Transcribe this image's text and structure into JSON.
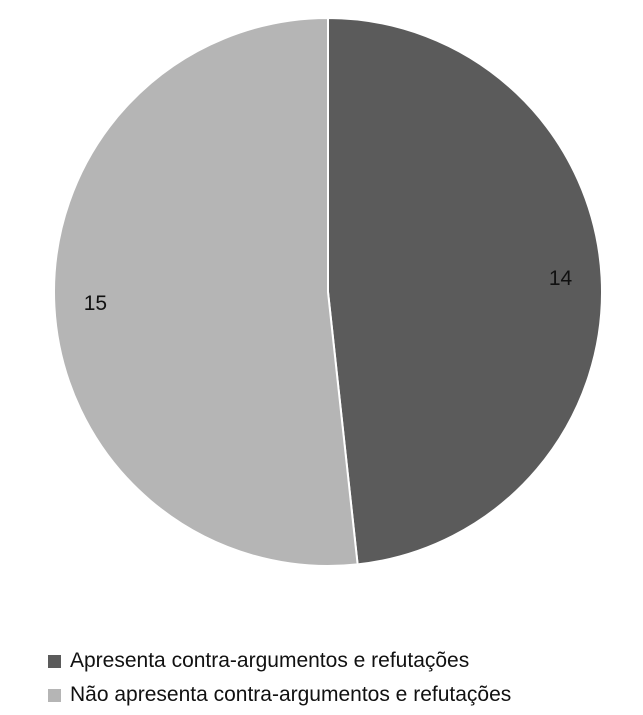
{
  "chart_data": {
    "type": "pie",
    "categories": [
      "Apresenta contra-argumentos e refutações",
      "Não apresenta contra-argumentos e refutações"
    ],
    "values": [
      14,
      15
    ],
    "data_labels": [
      "14",
      "15"
    ],
    "colors": [
      "#5b5b5b",
      "#b5b5b5"
    ],
    "start_angle": "12 o'clock",
    "direction": "clockwise",
    "legend_position": "bottom-left"
  }
}
